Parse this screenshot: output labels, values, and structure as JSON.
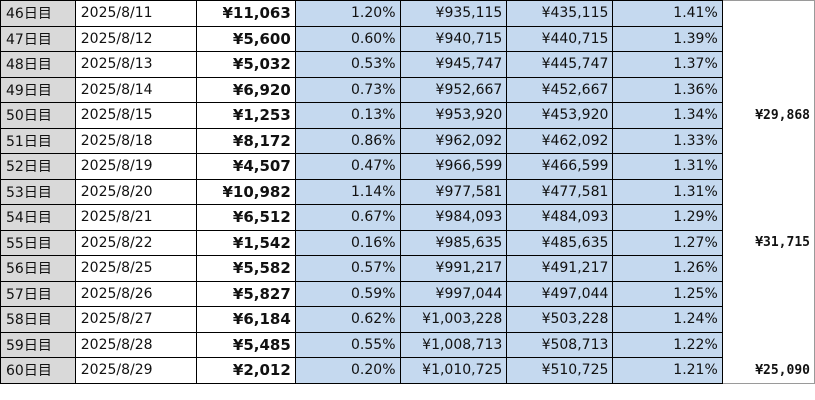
{
  "rows": [
    {
      "day": "46日目",
      "date": "2025/8/11",
      "amount": "¥11,063",
      "pct": "1.20%",
      "total": "¥935,115",
      "profit": "¥435,115",
      "rate": "1.41%",
      "week": ""
    },
    {
      "day": "47日目",
      "date": "2025/8/12",
      "amount": "¥5,600",
      "pct": "0.60%",
      "total": "¥940,715",
      "profit": "¥440,715",
      "rate": "1.39%",
      "week": ""
    },
    {
      "day": "48日目",
      "date": "2025/8/13",
      "amount": "¥5,032",
      "pct": "0.53%",
      "total": "¥945,747",
      "profit": "¥445,747",
      "rate": "1.37%",
      "week": ""
    },
    {
      "day": "49日目",
      "date": "2025/8/14",
      "amount": "¥6,920",
      "pct": "0.73%",
      "total": "¥952,667",
      "profit": "¥452,667",
      "rate": "1.36%",
      "week": ""
    },
    {
      "day": "50日目",
      "date": "2025/8/15",
      "amount": "¥1,253",
      "pct": "0.13%",
      "total": "¥953,920",
      "profit": "¥453,920",
      "rate": "1.34%",
      "week": "¥29,868"
    },
    {
      "day": "51日目",
      "date": "2025/8/18",
      "amount": "¥8,172",
      "pct": "0.86%",
      "total": "¥962,092",
      "profit": "¥462,092",
      "rate": "1.33%",
      "week": ""
    },
    {
      "day": "52日目",
      "date": "2025/8/19",
      "amount": "¥4,507",
      "pct": "0.47%",
      "total": "¥966,599",
      "profit": "¥466,599",
      "rate": "1.31%",
      "week": ""
    },
    {
      "day": "53日目",
      "date": "2025/8/20",
      "amount": "¥10,982",
      "pct": "1.14%",
      "total": "¥977,581",
      "profit": "¥477,581",
      "rate": "1.31%",
      "week": ""
    },
    {
      "day": "54日目",
      "date": "2025/8/21",
      "amount": "¥6,512",
      "pct": "0.67%",
      "total": "¥984,093",
      "profit": "¥484,093",
      "rate": "1.29%",
      "week": ""
    },
    {
      "day": "55日目",
      "date": "2025/8/22",
      "amount": "¥1,542",
      "pct": "0.16%",
      "total": "¥985,635",
      "profit": "¥485,635",
      "rate": "1.27%",
      "week": "¥31,715"
    },
    {
      "day": "56日目",
      "date": "2025/8/25",
      "amount": "¥5,582",
      "pct": "0.57%",
      "total": "¥991,217",
      "profit": "¥491,217",
      "rate": "1.26%",
      "week": ""
    },
    {
      "day": "57日目",
      "date": "2025/8/26",
      "amount": "¥5,827",
      "pct": "0.59%",
      "total": "¥997,044",
      "profit": "¥497,044",
      "rate": "1.25%",
      "week": ""
    },
    {
      "day": "58日目",
      "date": "2025/8/27",
      "amount": "¥6,184",
      "pct": "0.62%",
      "total": "¥1,003,228",
      "profit": "¥503,228",
      "rate": "1.24%",
      "week": ""
    },
    {
      "day": "59日目",
      "date": "2025/8/28",
      "amount": "¥5,485",
      "pct": "0.55%",
      "total": "¥1,008,713",
      "profit": "¥508,713",
      "rate": "1.22%",
      "week": ""
    },
    {
      "day": "60日目",
      "date": "2025/8/29",
      "amount": "¥2,012",
      "pct": "0.20%",
      "total": "¥1,010,725",
      "profit": "¥510,725",
      "rate": "1.21%",
      "week": "¥25,090"
    }
  ]
}
